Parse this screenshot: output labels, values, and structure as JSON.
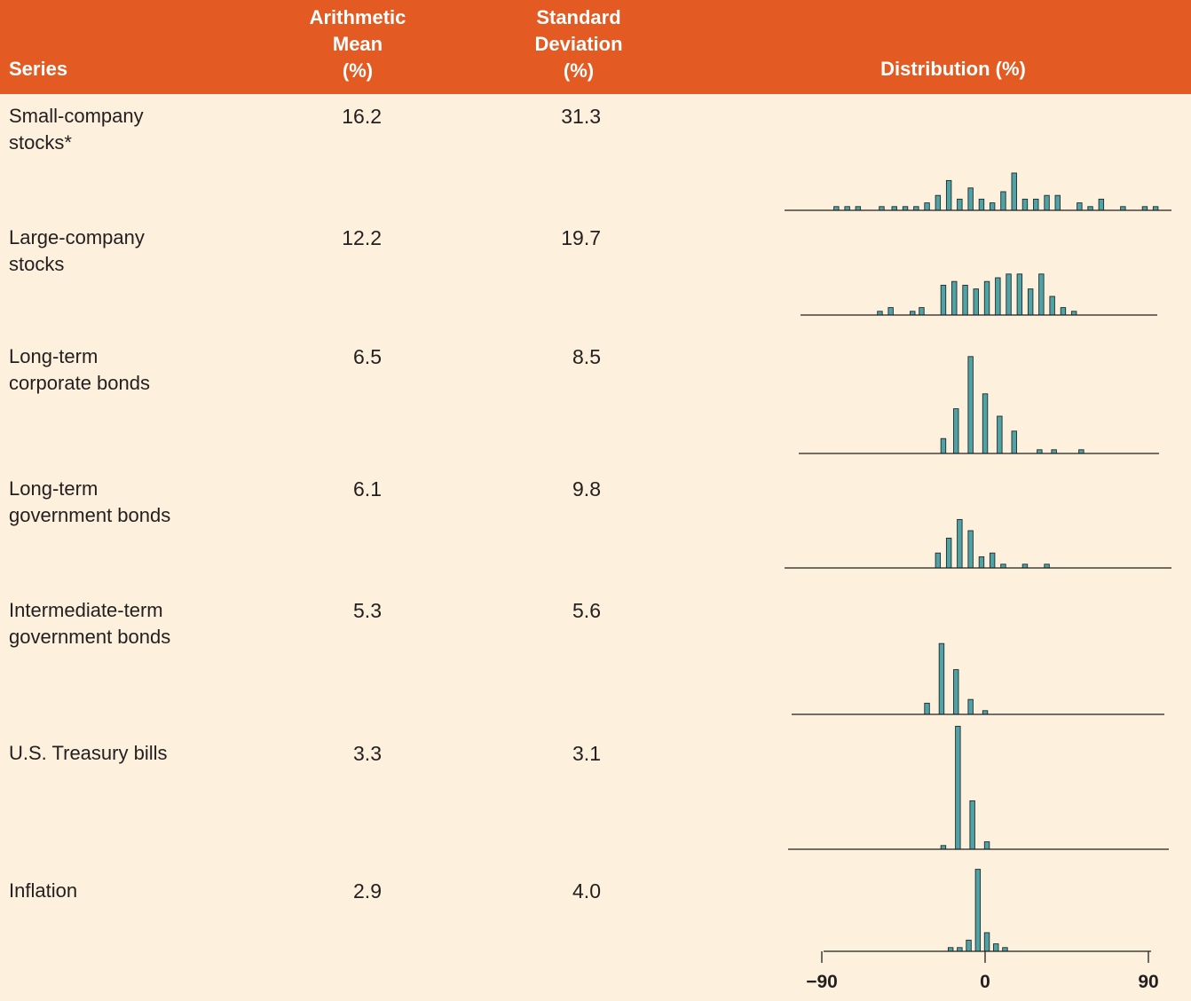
{
  "header": {
    "series": "Series",
    "mean": [
      "Arithmetic",
      "Mean",
      "(%)"
    ],
    "std": [
      "Standard",
      "Deviation",
      "(%)"
    ],
    "distribution": "Distribution (%)"
  },
  "rows": [
    {
      "label": [
        "Small-company",
        "stocks*"
      ],
      "mean": "16.2",
      "std": "31.3"
    },
    {
      "label": [
        "Large-company",
        "stocks"
      ],
      "mean": "12.2",
      "std": "19.7"
    },
    {
      "label": [
        "Long-term",
        "corporate bonds"
      ],
      "mean": "6.5",
      "std": "8.5"
    },
    {
      "label": [
        "Long-term",
        "government bonds"
      ],
      "mean": "6.1",
      "std": "9.8"
    },
    {
      "label": [
        "Intermediate-term",
        "government bonds"
      ],
      "mean": "5.3",
      "std": "5.6"
    },
    {
      "label": [
        "U.S. Treasury bills"
      ],
      "mean": "3.3",
      "std": "3.1"
    },
    {
      "label": [
        "Inflation"
      ],
      "mean": "2.9",
      "std": "4.0"
    }
  ],
  "colors": {
    "header_bg": "#e35b22",
    "background": "#fdf0dc",
    "bar": "#4fa3a5"
  },
  "chart_data": {
    "type": "bar",
    "title": "Distribution (%)",
    "x_axis": {
      "range": [
        -90,
        90
      ],
      "ticks": [
        "−90",
        "0",
        "90"
      ],
      "tick_values": [
        -90,
        0,
        90
      ]
    },
    "bin_width": 6,
    "series": [
      {
        "name": "Small-company stocks*",
        "x": [
          -82,
          -76,
          -70,
          -57,
          -50,
          -44,
          -38,
          -32,
          -26,
          -20,
          -14,
          -8,
          -2,
          4,
          10,
          16,
          22,
          28,
          34,
          40,
          52,
          58,
          64,
          76,
          88,
          94
        ],
        "values": [
          1,
          1,
          1,
          1,
          1,
          1,
          1,
          2,
          4,
          8,
          3,
          6,
          3,
          2,
          5,
          10,
          3,
          3,
          4,
          4,
          2,
          1,
          3,
          1,
          1,
          1
        ]
      },
      {
        "name": "Large-company stocks",
        "x": [
          -58,
          -52,
          -40,
          -35,
          -23,
          -17,
          -11,
          -5,
          1,
          7,
          13,
          19,
          25,
          31,
          37,
          43,
          49
        ],
        "values": [
          1,
          2,
          1,
          2,
          8,
          9,
          8,
          7,
          9,
          10,
          11,
          11,
          7,
          11,
          5,
          2,
          1
        ]
      },
      {
        "name": "Long-term corporate bonds",
        "x": [
          -23,
          -16,
          -8,
          0,
          8,
          16,
          30,
          38,
          53
        ],
        "values": [
          4,
          12,
          26,
          16,
          10,
          6,
          1,
          1,
          1
        ]
      },
      {
        "name": "Long-term government bonds",
        "x": [
          -26,
          -20,
          -14,
          -8,
          -2,
          4,
          10,
          22,
          34
        ],
        "values": [
          4,
          8,
          13,
          10,
          3,
          4,
          1,
          1,
          1
        ]
      },
      {
        "name": "Intermediate-term government bonds",
        "x": [
          -32,
          -24,
          -16,
          -8,
          0
        ],
        "values": [
          3,
          19,
          12,
          4,
          1
        ]
      },
      {
        "name": "U.S. Treasury bills",
        "x": [
          -23,
          -15,
          -7,
          1
        ],
        "values": [
          1,
          33,
          13,
          2
        ]
      },
      {
        "name": "Inflation",
        "x": [
          -19,
          -14,
          -9,
          -4,
          1,
          6,
          11
        ],
        "values": [
          1,
          1,
          3,
          22,
          5,
          2,
          1
        ]
      }
    ]
  }
}
